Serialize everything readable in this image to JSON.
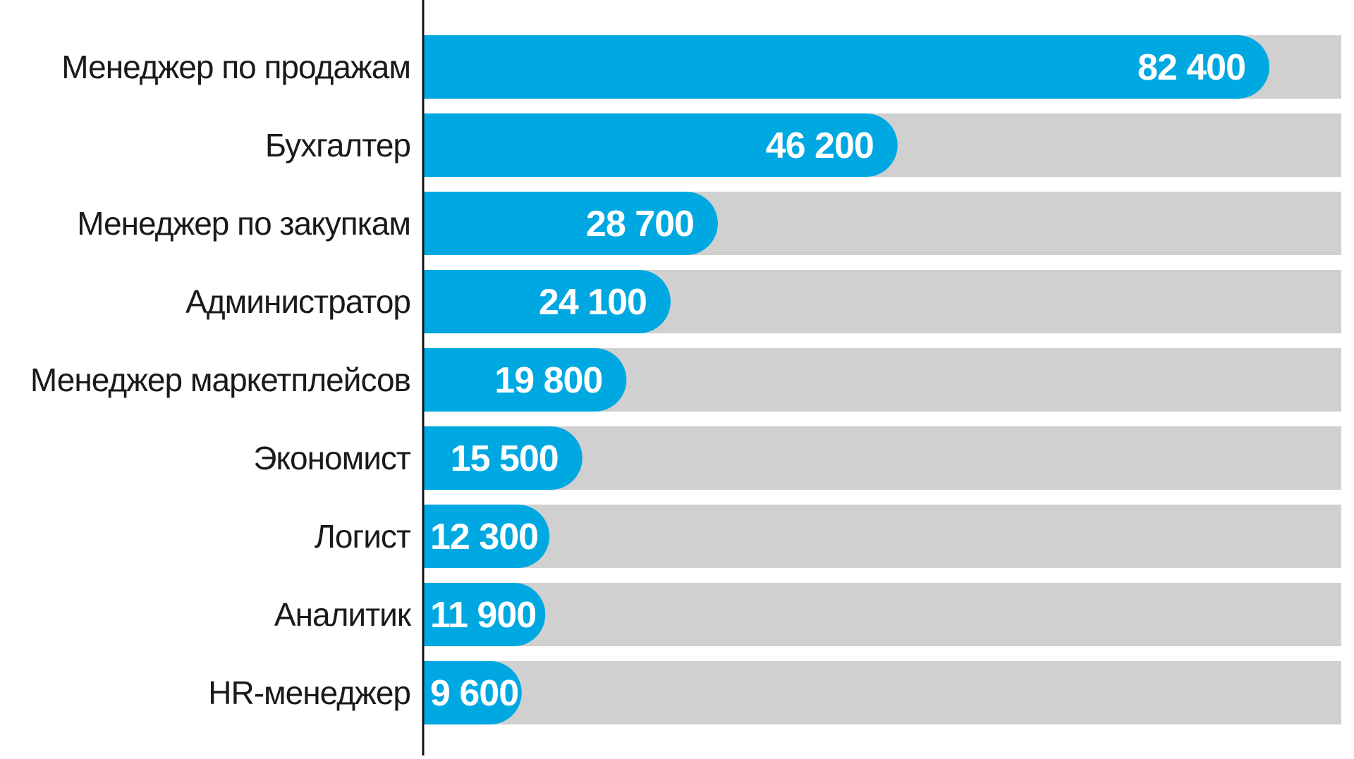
{
  "colors": {
    "bar": "#00a8e1",
    "track": "#d0d0d0",
    "axis": "#111111",
    "background": "#ffffff"
  },
  "chart_data": {
    "type": "bar",
    "orientation": "horizontal",
    "categories": [
      "Менеджер по продажам",
      "Бухгалтер",
      "Менеджер по закупкам",
      "Администратор",
      "Менеджер маркетплейсов",
      "Экономист",
      "Логист",
      "Аналитик",
      "HR-менеджер"
    ],
    "values": [
      82400,
      46200,
      28700,
      24100,
      19800,
      15500,
      12300,
      11900,
      9600
    ],
    "value_labels": [
      "82 400",
      "46 200",
      "28 700",
      "24 100",
      "19 800",
      "15 500",
      "12 300",
      "11 900",
      "9 600"
    ],
    "xlim": [
      0,
      90000
    ],
    "grid": false,
    "legend": "none",
    "title": "",
    "xlabel": "",
    "ylabel": ""
  }
}
